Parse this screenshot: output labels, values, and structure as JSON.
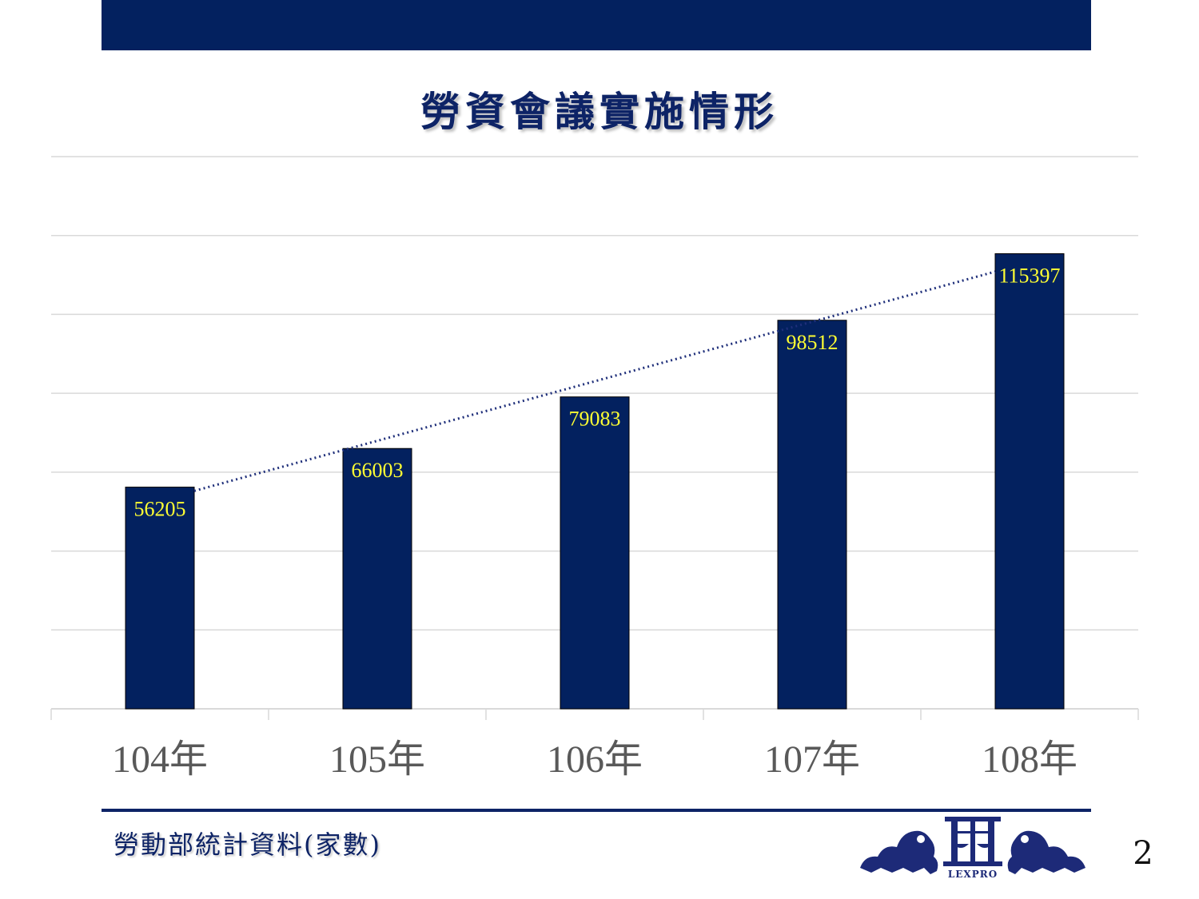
{
  "slide": {
    "title": "勞資會議實施情形",
    "source_note": "勞動部統計資料(家數)",
    "page_number": "2",
    "logo_text": "LEXPRO"
  },
  "colors": {
    "band": "#03215f",
    "bar": "#03215f",
    "bar_label": "#ffff33",
    "trendline": "#1f2f7a",
    "grid": "#d9d9d9",
    "tick_label": "#595959"
  },
  "chart_data": {
    "type": "bar",
    "title": "",
    "xlabel": "",
    "ylabel": "",
    "categories": [
      "104年",
      "105年",
      "106年",
      "107年",
      "108年"
    ],
    "values": [
      56205,
      66003,
      79083,
      98512,
      115397
    ],
    "ylim": [
      0,
      140000
    ],
    "y_gridline_step": 20000,
    "grid": true,
    "y_axis_labels_shown": false,
    "data_labels": true,
    "legend": "none",
    "trendline": "linear"
  }
}
